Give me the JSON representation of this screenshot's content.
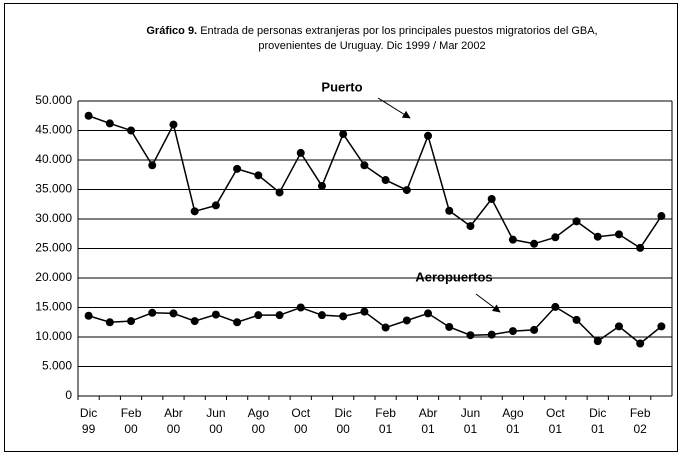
{
  "chart_data": {
    "type": "line",
    "title_prefix": "Gráfico 9.",
    "title_lines": [
      "Entrada de personas extranjeras por los principales puestos migratorios del GBA,",
      "provenientes de Uruguay. Dic 1999 / Mar 2002"
    ],
    "categories": [
      [
        "Dic",
        "99"
      ],
      null,
      [
        "Feb",
        "00"
      ],
      null,
      [
        "Abr",
        "00"
      ],
      null,
      [
        "Jun",
        "00"
      ],
      null,
      [
        "Ago",
        "00"
      ],
      null,
      [
        "Oct",
        "00"
      ],
      null,
      [
        "Dic",
        "00"
      ],
      null,
      [
        "Feb",
        "01"
      ],
      null,
      [
        "Abr",
        "01"
      ],
      null,
      [
        "Jun",
        "01"
      ],
      null,
      [
        "Ago",
        "01"
      ],
      null,
      [
        "Oct",
        "01"
      ],
      null,
      [
        "Dic",
        "01"
      ],
      null,
      [
        "Feb",
        "02"
      ],
      null
    ],
    "series": [
      {
        "name": "Puerto",
        "color": "#000000",
        "values": [
          47500,
          46200,
          45000,
          39100,
          46000,
          31300,
          32300,
          38500,
          37400,
          34500,
          41200,
          35600,
          44400,
          39100,
          36600,
          34900,
          44100,
          31400,
          28800,
          33400,
          26500,
          25800,
          26900,
          29600,
          27000,
          27400,
          25100,
          30500
        ]
      },
      {
        "name": "Aeropuertos",
        "color": "#000000",
        "values": [
          13600,
          12500,
          12700,
          14100,
          14000,
          12700,
          13800,
          12500,
          13700,
          13700,
          15000,
          13700,
          13500,
          14300,
          11600,
          12800,
          14000,
          11700,
          10300,
          10400,
          11000,
          11200,
          15100,
          12900,
          9300,
          11800,
          8900,
          11800
        ]
      }
    ],
    "ylim": [
      0,
      50000
    ],
    "yticks": [
      0,
      {
        "value": 5000,
        "label": "5.000"
      },
      {
        "value": 10000,
        "label": "10.000"
      },
      {
        "value": 15000,
        "label": "15.000"
      },
      {
        "value": 20000,
        "label": "20.000"
      },
      {
        "value": 25000,
        "label": "25.000"
      },
      {
        "value": 30000,
        "label": "30.000"
      },
      {
        "value": 35000,
        "label": "35.000"
      },
      {
        "value": 40000,
        "label": "40.000"
      },
      {
        "value": 45000,
        "label": "45.000"
      },
      {
        "value": 50000,
        "label": "50.000"
      }
    ],
    "grid": true
  }
}
